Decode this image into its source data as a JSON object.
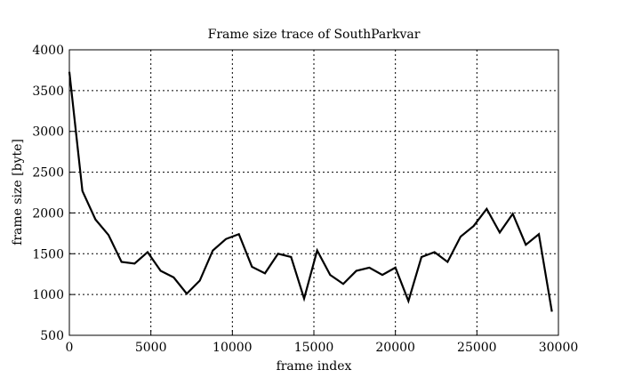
{
  "chart_data": {
    "type": "line",
    "title": "Frame size trace of SouthParkvar",
    "xlabel": "frame index",
    "ylabel": "frame size [byte]",
    "xlim": [
      0,
      30000
    ],
    "ylim": [
      500,
      4000
    ],
    "xticks": [
      0,
      5000,
      10000,
      15000,
      20000,
      25000,
      30000
    ],
    "yticks": [
      500,
      1000,
      1500,
      2000,
      2500,
      3000,
      3500,
      4000
    ],
    "grid": true,
    "series": [
      {
        "name": "SouthParkvar",
        "color": "#000000",
        "x": [
          0,
          800,
          1600,
          2400,
          3200,
          4000,
          4800,
          5600,
          6400,
          7200,
          8000,
          8800,
          9600,
          10400,
          11200,
          12000,
          12800,
          13600,
          14400,
          15200,
          16000,
          16800,
          17600,
          18400,
          19200,
          20000,
          20800,
          21600,
          22400,
          23200,
          24000,
          24800,
          25600,
          26400,
          27200,
          28000,
          28800,
          29600
        ],
        "y": [
          3730,
          2270,
          1920,
          1730,
          1400,
          1380,
          1520,
          1290,
          1210,
          1010,
          1170,
          1540,
          1680,
          1740,
          1340,
          1260,
          1500,
          1460,
          950,
          1540,
          1240,
          1130,
          1290,
          1330,
          1240,
          1330,
          920,
          1460,
          1520,
          1400,
          1710,
          1840,
          2050,
          1760,
          1990,
          1610,
          1740,
          790
        ]
      }
    ]
  }
}
